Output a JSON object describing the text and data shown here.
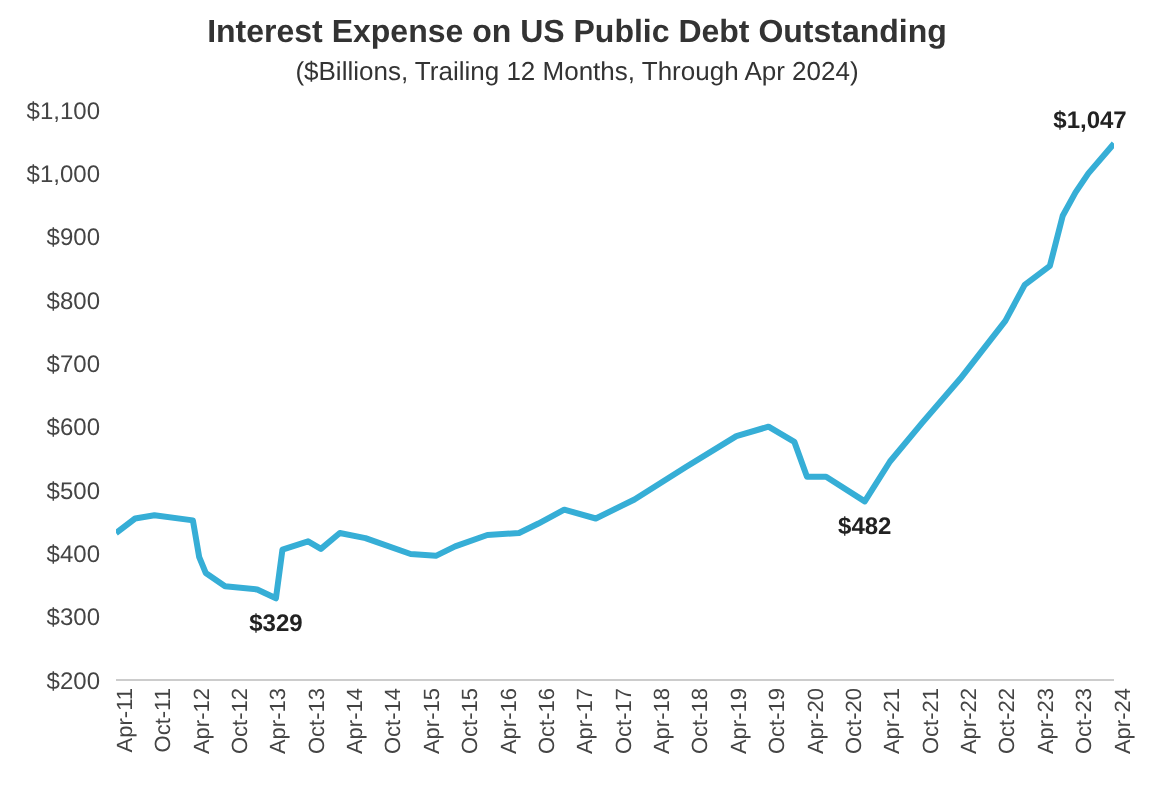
{
  "chart_data": {
    "type": "line",
    "title": "Interest Expense on US Public Debt Outstanding",
    "subtitle": "($Billions, Trailing 12 Months, Through Apr 2024)",
    "x": [
      "2011-04",
      "2011-07",
      "2011-10",
      "2012-04",
      "2012-05",
      "2012-06",
      "2012-09",
      "2013-02",
      "2013-05",
      "2013-06",
      "2013-10",
      "2013-12",
      "2014-03",
      "2014-07",
      "2015-02",
      "2015-06",
      "2015-09",
      "2016-02",
      "2016-07",
      "2016-10",
      "2017-02",
      "2017-07",
      "2018-01",
      "2018-09",
      "2019-05",
      "2019-10",
      "2020-02",
      "2020-04",
      "2020-07",
      "2021-01",
      "2021-05",
      "2021-10",
      "2022-04",
      "2022-11",
      "2023-02",
      "2023-06",
      "2023-08",
      "2023-10",
      "2023-12",
      "2024-04"
    ],
    "series": [
      {
        "color": "#36aed6",
        "values": [
          432,
          455,
          460,
          452,
          394,
          369,
          348,
          343,
          329,
          406,
          419,
          407,
          432,
          424,
          399,
          396,
          411,
          429,
          432,
          447,
          469,
          455,
          485,
          536,
          585,
          600,
          576,
          521,
          521,
          482,
          545,
          606,
          676,
          767,
          824,
          854,
          933,
          970,
          1000,
          1047
        ]
      }
    ],
    "ylim": [
      200,
      1100
    ],
    "yticks": [
      {
        "value": 200,
        "label": "$200"
      },
      {
        "value": 300,
        "label": "$300"
      },
      {
        "value": 400,
        "label": "$400"
      },
      {
        "value": 500,
        "label": "$500"
      },
      {
        "value": 600,
        "label": "$600"
      },
      {
        "value": 700,
        "label": "$700"
      },
      {
        "value": 800,
        "label": "$800"
      },
      {
        "value": 900,
        "label": "$900"
      },
      {
        "value": 1000,
        "label": "$1,000"
      },
      {
        "value": 1100,
        "label": "$1,100"
      }
    ],
    "xlim": [
      "2011-04",
      "2024-04"
    ],
    "xticks": [
      {
        "value": "2011-04",
        "label": "Apr-11"
      },
      {
        "value": "2011-10",
        "label": "Oct-11"
      },
      {
        "value": "2012-04",
        "label": "Apr-12"
      },
      {
        "value": "2012-10",
        "label": "Oct-12"
      },
      {
        "value": "2013-04",
        "label": "Apr-13"
      },
      {
        "value": "2013-10",
        "label": "Oct-13"
      },
      {
        "value": "2014-04",
        "label": "Apr-14"
      },
      {
        "value": "2014-10",
        "label": "Oct-14"
      },
      {
        "value": "2015-04",
        "label": "Apr-15"
      },
      {
        "value": "2015-10",
        "label": "Oct-15"
      },
      {
        "value": "2016-04",
        "label": "Apr-16"
      },
      {
        "value": "2016-10",
        "label": "Oct-16"
      },
      {
        "value": "2017-04",
        "label": "Apr-17"
      },
      {
        "value": "2017-10",
        "label": "Oct-17"
      },
      {
        "value": "2018-04",
        "label": "Apr-18"
      },
      {
        "value": "2018-10",
        "label": "Oct-18"
      },
      {
        "value": "2019-04",
        "label": "Apr-19"
      },
      {
        "value": "2019-10",
        "label": "Oct-19"
      },
      {
        "value": "2020-04",
        "label": "Apr-20"
      },
      {
        "value": "2020-10",
        "label": "Oct-20"
      },
      {
        "value": "2021-04",
        "label": "Apr-21"
      },
      {
        "value": "2021-10",
        "label": "Oct-21"
      },
      {
        "value": "2022-04",
        "label": "Apr-22"
      },
      {
        "value": "2022-10",
        "label": "Oct-22"
      },
      {
        "value": "2023-04",
        "label": "Apr-23"
      },
      {
        "value": "2023-10",
        "label": "Oct-23"
      },
      {
        "value": "2024-04",
        "label": "Apr-24"
      }
    ],
    "annotations": [
      {
        "text": "$329",
        "x": "2013-05",
        "y": 329
      },
      {
        "text": "$482",
        "x": "2021-01",
        "y": 482
      },
      {
        "text": "$1,047",
        "x": "2024-04",
        "y": 1047
      }
    ],
    "grid": false,
    "legend": false,
    "marker": "none",
    "line_style": "solid"
  }
}
